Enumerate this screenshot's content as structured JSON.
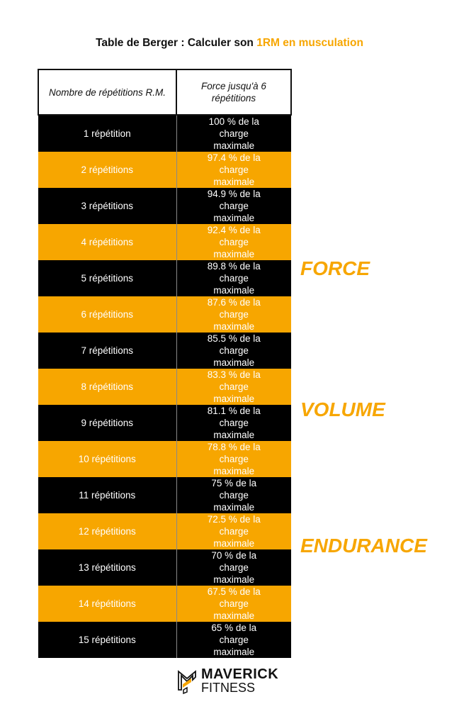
{
  "title": {
    "prefix": "Table de Berger : Calculer son ",
    "highlight": "1RM en musculation"
  },
  "colors": {
    "accent": "#f7a600",
    "dark": "#000000"
  },
  "table": {
    "headers": [
      "Nombre de répétitions R.M.",
      "Force jusqu'à 6 répétitions"
    ],
    "rows": [
      {
        "reps": "1 répétition",
        "load": "100 % de la charge maximale"
      },
      {
        "reps": "2 répétitions",
        "load": "97.4 % de la charge maximale"
      },
      {
        "reps": "3 répétitions",
        "load": "94.9 % de la charge maximale"
      },
      {
        "reps": "4 répétitions",
        "load": "92.4 % de la charge maximale"
      },
      {
        "reps": "5 répétitions",
        "load": "89.8 % de la charge maximale"
      },
      {
        "reps": "6 répétitions",
        "load": "87.6 % de la charge maximale"
      },
      {
        "reps": "7 répétitions",
        "load": "85.5 % de la charge maximale"
      },
      {
        "reps": "8 répétitions",
        "load": "83.3 % de la charge maximale"
      },
      {
        "reps": "9 répétitions",
        "load": "81.1 % de la charge maximale"
      },
      {
        "reps": "10 répétitions",
        "load": "78.8 % de la charge maximale"
      },
      {
        "reps": "11 répétitions",
        "load": "75 % de la charge maximale"
      },
      {
        "reps": "12 répétitions",
        "load": "72.5 % de la charge maximale"
      },
      {
        "reps": "13 répétitions",
        "load": "70 % de la charge maximale"
      },
      {
        "reps": "14 répétitions",
        "load": "67.5 % de la charge maximale"
      },
      {
        "reps": "15 répétitions",
        "load": "65 % de la charge maximale"
      }
    ]
  },
  "zones": [
    "FORCE",
    "VOLUME",
    "ENDURANCE"
  ],
  "logo": {
    "line1": "MAVERICK",
    "line2": "FITNESS",
    "icon": "maverick-m-logo-icon"
  }
}
